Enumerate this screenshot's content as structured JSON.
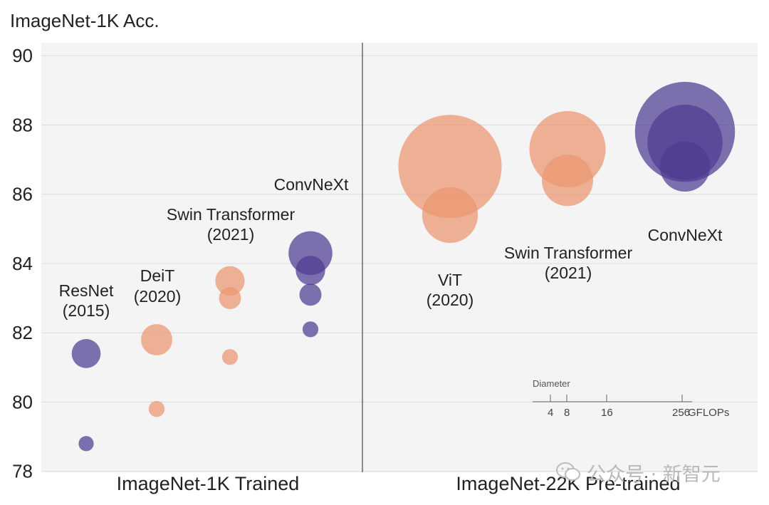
{
  "chart_data": {
    "type": "scatter",
    "title": "ImageNet-1K Acc.",
    "ylabel": "ImageNet-1K Acc.",
    "ylim": [
      78,
      90
    ],
    "yticks": [
      78,
      80,
      82,
      84,
      86,
      88,
      90
    ],
    "grid": true,
    "panels": [
      {
        "name": "ImageNet-1K Trained",
        "groups": [
          {
            "label": "ResNet",
            "year": "(2015)",
            "family": "resnet",
            "color": "#4e3c92",
            "points": [
              {
                "acc": 78.8,
                "gflops": 4.1
              },
              {
                "acc": 81.4,
                "gflops": 15.0
              }
            ]
          },
          {
            "label": "DeiT",
            "year": "(2020)",
            "family": "transformer",
            "color": "#ec9570",
            "points": [
              {
                "acc": 79.8,
                "gflops": 4.6
              },
              {
                "acc": 81.8,
                "gflops": 17.5
              }
            ]
          },
          {
            "label": "Swin Transformer",
            "year": "(2021)",
            "family": "transformer",
            "color": "#ec9570",
            "points": [
              {
                "acc": 81.3,
                "gflops": 4.5
              },
              {
                "acc": 83.0,
                "gflops": 8.7
              },
              {
                "acc": 83.5,
                "gflops": 15.4
              }
            ]
          },
          {
            "label": "ConvNeXt",
            "year": "",
            "family": "convnext",
            "color": "#4e3c92",
            "points": [
              {
                "acc": 82.1,
                "gflops": 4.5
              },
              {
                "acc": 83.1,
                "gflops": 8.7
              },
              {
                "acc": 83.8,
                "gflops": 15.4
              },
              {
                "acc": 84.3,
                "gflops": 34.4
              }
            ]
          }
        ]
      },
      {
        "name": "ImageNet-22K Pre-trained",
        "groups": [
          {
            "label": "ViT",
            "year": "(2020)",
            "family": "transformer",
            "color": "#ec9570",
            "points": [
              {
                "acc": 85.4,
                "gflops": 55.5
              },
              {
                "acc": 86.8,
                "gflops": 191.1
              }
            ]
          },
          {
            "label": "Swin Transformer",
            "year": "(2021)",
            "family": "transformer",
            "color": "#ec9570",
            "points": [
              {
                "acc": 86.4,
                "gflops": 47.1
              },
              {
                "acc": 87.3,
                "gflops": 103.9
              }
            ]
          },
          {
            "label": "ConvNeXt",
            "year": "",
            "family": "convnext",
            "color": "#4e3c92",
            "points": [
              {
                "acc": 86.8,
                "gflops": 45.0
              },
              {
                "acc": 87.5,
                "gflops": 101.0
              },
              {
                "acc": 87.8,
                "gflops": 179.0
              }
            ]
          }
        ]
      }
    ],
    "size_legend": {
      "title": "Diameter",
      "ticks": [
        {
          "value": 4,
          "label": "4"
        },
        {
          "value": 8,
          "label": "8"
        },
        {
          "value": 16,
          "label": "16"
        },
        {
          "value": 256,
          "label": "256"
        }
      ],
      "unit": "GFLOPs"
    }
  },
  "watermark": {
    "text": "公众号 · 新智元",
    "icon": "wechat-icon"
  }
}
